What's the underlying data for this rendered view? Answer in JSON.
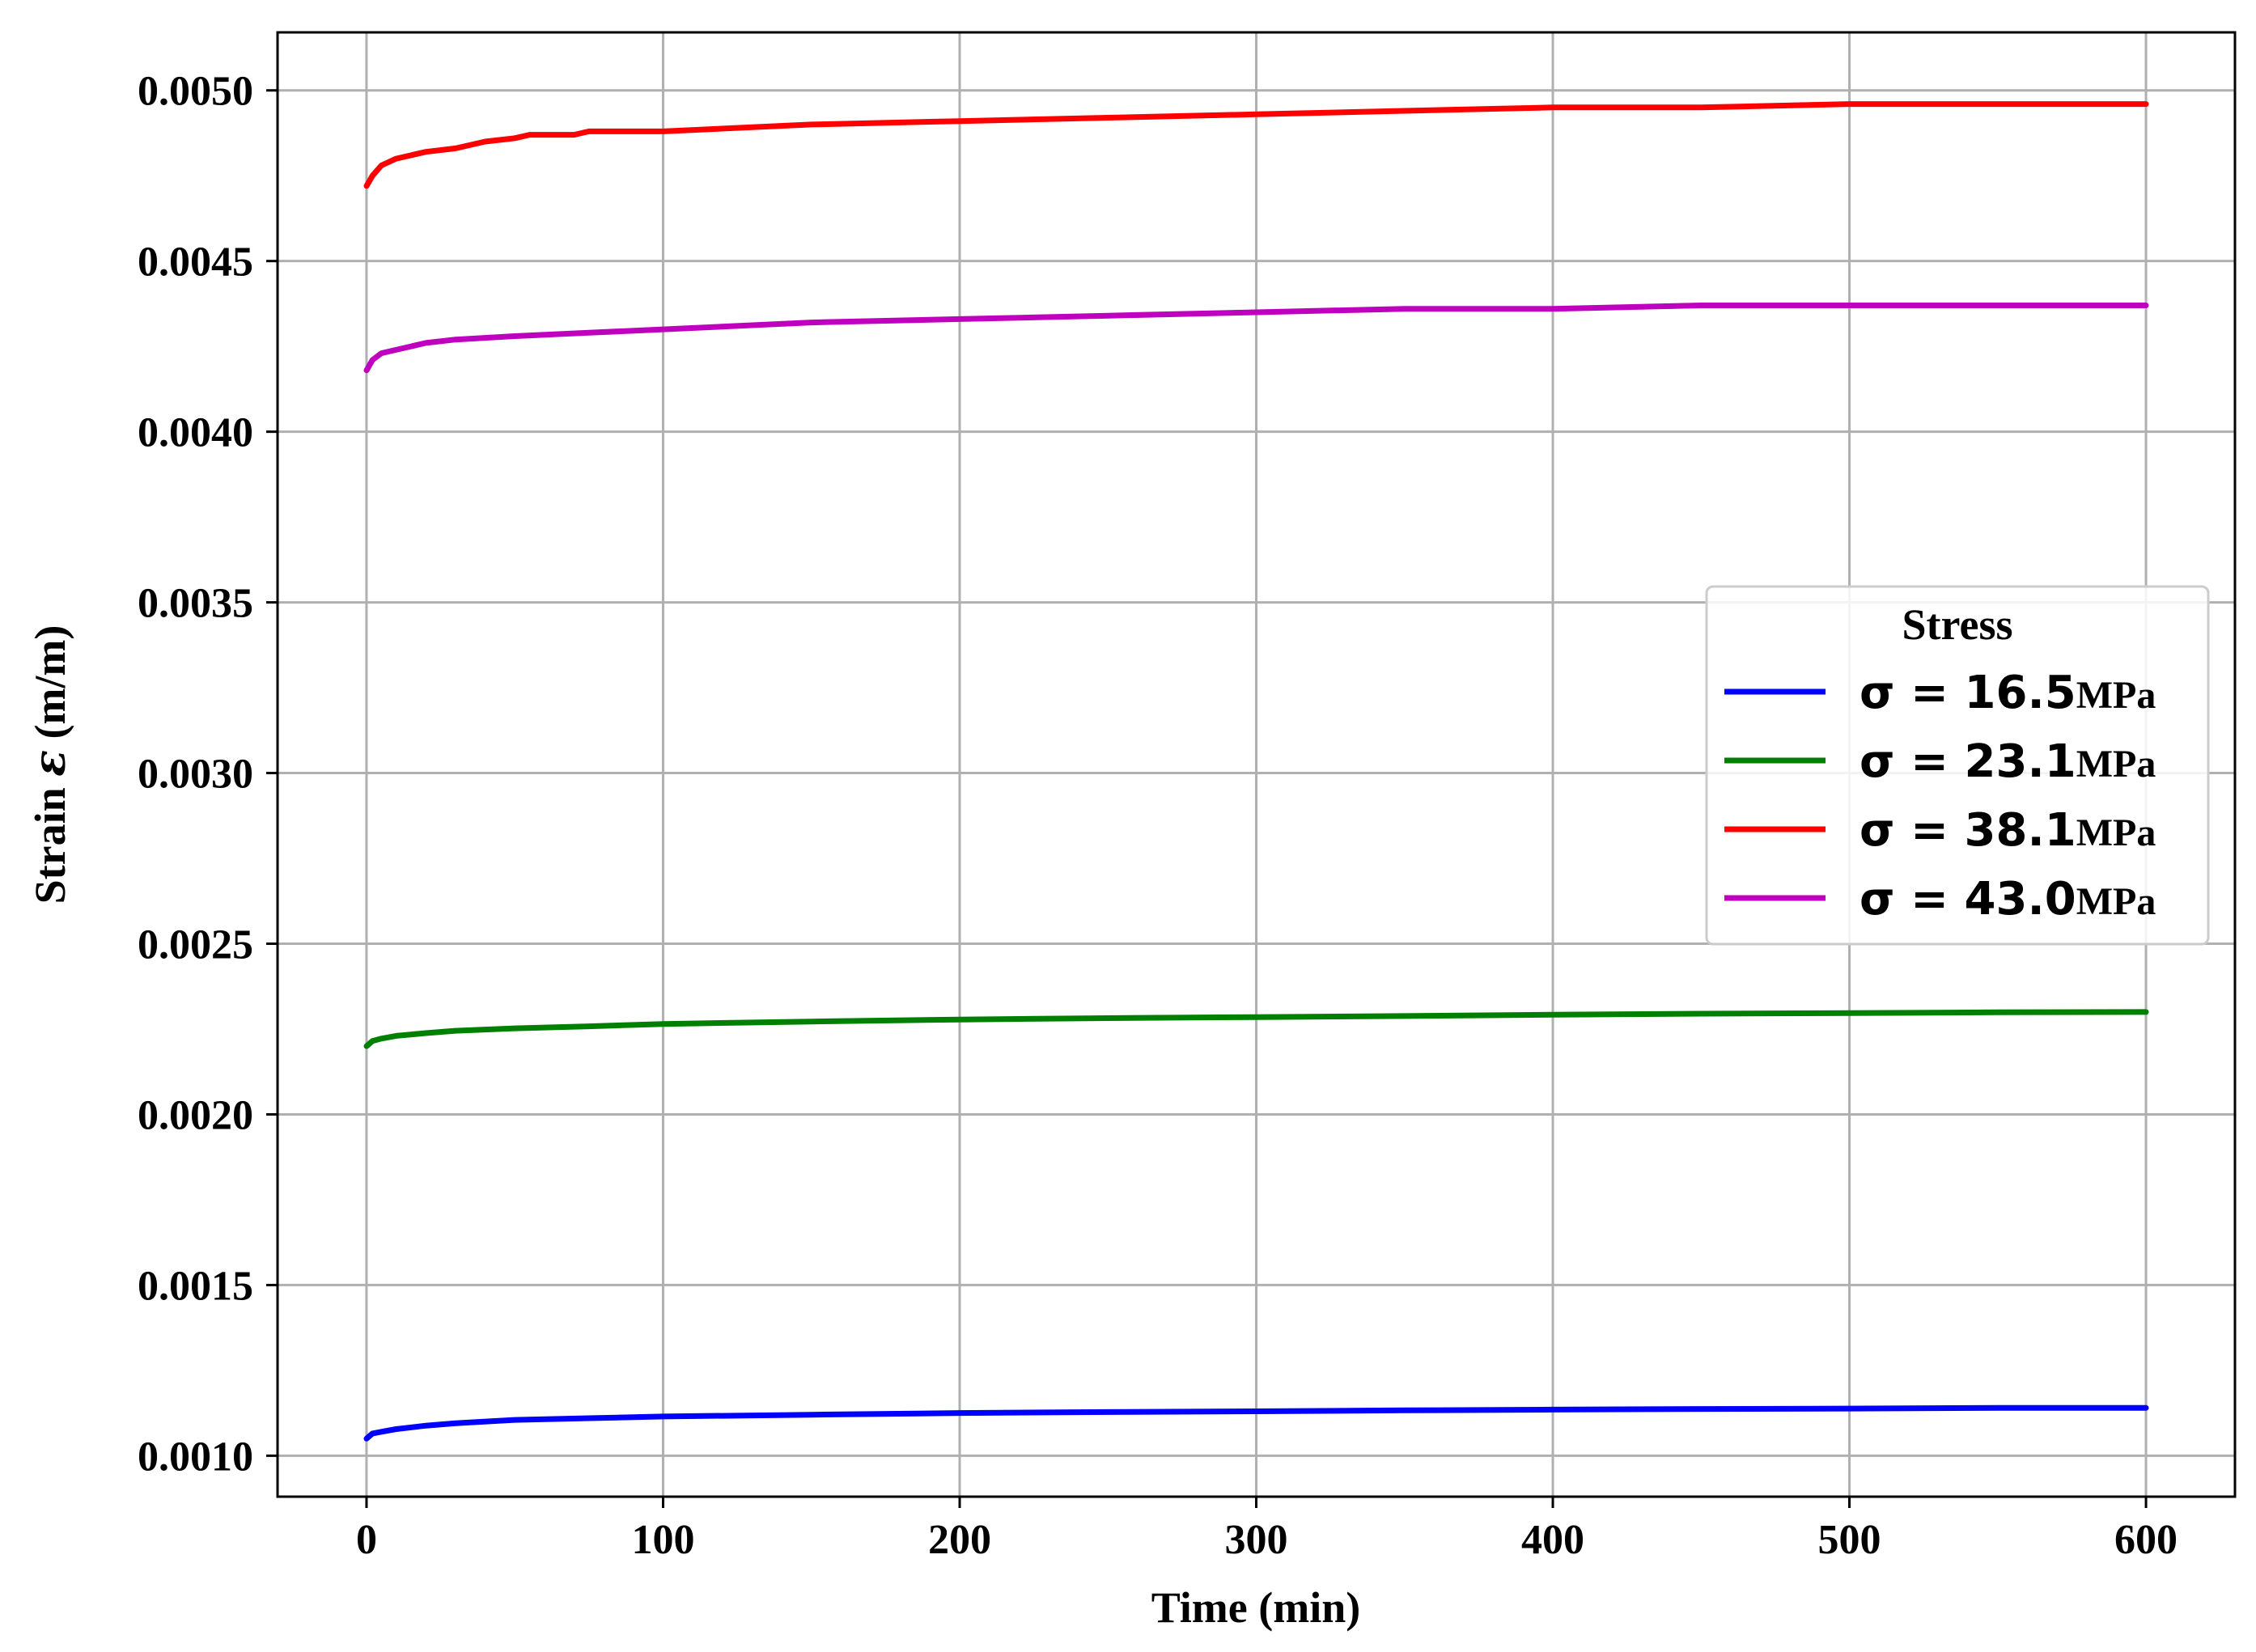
{
  "chart_data": {
    "type": "line",
    "xlabel": "Time (min)",
    "ylabel_prefix": "Strain ",
    "ylabel_symbol": "ε",
    "ylabel_suffix": " (m/m)",
    "xlim": [
      -30,
      630
    ],
    "ylim": [
      0.00088,
      0.00517
    ],
    "x_ticks": [
      0,
      100,
      200,
      300,
      400,
      500,
      600
    ],
    "x_tick_labels": [
      "0",
      "100",
      "200",
      "300",
      "400",
      "500",
      "600"
    ],
    "y_ticks": [
      0.001,
      0.0015,
      0.002,
      0.0025,
      0.003,
      0.0035,
      0.004,
      0.0045,
      0.005
    ],
    "y_tick_labels": [
      "0.0010",
      "0.0015",
      "0.0020",
      "0.0025",
      "0.0030",
      "0.0035",
      "0.0040",
      "0.0045",
      "0.0050"
    ],
    "grid": true,
    "legend_position": "center-right",
    "legend_title": "Stress",
    "series": [
      {
        "name": "σ = 16.5 MPa",
        "symbol": "σ = 16.5",
        "unit": "MPa",
        "color": "#0000ff",
        "x": [
          0,
          2,
          5,
          10,
          20,
          30,
          50,
          75,
          100,
          150,
          200,
          250,
          300,
          350,
          400,
          450,
          500,
          550,
          600
        ],
        "y": [
          0.00105,
          0.001065,
          0.00107,
          0.001078,
          0.001088,
          0.001095,
          0.001105,
          0.00111,
          0.001115,
          0.00112,
          0.001125,
          0.001128,
          0.00113,
          0.001133,
          0.001135,
          0.001137,
          0.001138,
          0.00114,
          0.00114
        ]
      },
      {
        "name": "σ = 23.1 MPa",
        "symbol": "σ = 23.1",
        "unit": "MPa",
        "color": "#008000",
        "x": [
          0,
          2,
          5,
          10,
          20,
          30,
          50,
          75,
          100,
          150,
          200,
          250,
          300,
          350,
          400,
          450,
          500,
          550,
          600
        ],
        "y": [
          0.0022,
          0.002215,
          0.002222,
          0.00223,
          0.002238,
          0.002245,
          0.002252,
          0.002258,
          0.002265,
          0.002272,
          0.002278,
          0.002282,
          0.002285,
          0.002288,
          0.002292,
          0.002295,
          0.002297,
          0.002299,
          0.0023
        ]
      },
      {
        "name": "σ = 38.1 MPa",
        "symbol": "σ = 38.1",
        "unit": "MPa",
        "color": "#ff0000",
        "x": [
          0,
          2,
          5,
          10,
          20,
          30,
          40,
          50,
          55,
          70,
          75,
          100,
          150,
          200,
          250,
          300,
          350,
          400,
          450,
          500,
          550,
          600
        ],
        "y": [
          0.00472,
          0.00475,
          0.00478,
          0.0048,
          0.00482,
          0.00483,
          0.00485,
          0.00486,
          0.00487,
          0.00487,
          0.00488,
          0.00488,
          0.0049,
          0.00491,
          0.00492,
          0.00493,
          0.00494,
          0.00495,
          0.00495,
          0.00496,
          0.00496,
          0.00496
        ]
      },
      {
        "name": "σ = 43.0 MPa",
        "symbol": "σ = 43.0",
        "unit": "MPa",
        "color": "#bf00bf",
        "x": [
          0,
          2,
          5,
          10,
          20,
          30,
          50,
          75,
          100,
          150,
          200,
          250,
          300,
          350,
          400,
          450,
          500,
          550,
          600
        ],
        "y": [
          0.00418,
          0.00421,
          0.00423,
          0.00424,
          0.00426,
          0.00427,
          0.00428,
          0.00429,
          0.0043,
          0.00432,
          0.00433,
          0.00434,
          0.00435,
          0.00436,
          0.00436,
          0.00437,
          0.00437,
          0.00437,
          0.00437
        ]
      }
    ]
  }
}
